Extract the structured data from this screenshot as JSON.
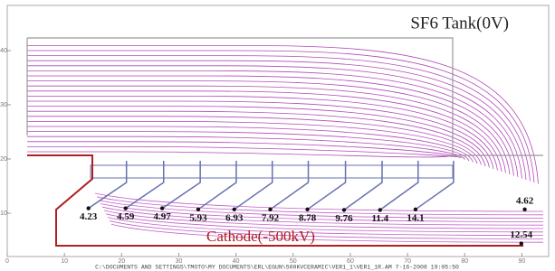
{
  "chart_data": {
    "type": "scatter",
    "tank_label": "SF6 Tank(0V)",
    "cathode_label": "Cathode(-500kV)",
    "footer": "C:\\DOCUMENTS AND SETTINGS\\TMOTO\\MY DOCUMENTS\\ERL\\EGUN\\500KVCERAMIC\\VER1_1\\VER1_1R.AM   7-16-2008  19:05:50",
    "x": [
      14.2,
      20.7,
      27.1,
      33.4,
      39.7,
      46.0,
      52.5,
      58.9,
      65.2,
      71.4,
      90.5,
      89.9
    ],
    "values": [
      10.9,
      10.9,
      10.9,
      10.7,
      10.7,
      10.7,
      10.7,
      10.6,
      10.6,
      10.7,
      10.7,
      4.4
    ],
    "field_values": [
      4.23,
      4.59,
      4.97,
      5.93,
      6.93,
      7.92,
      8.78,
      9.76,
      11.4,
      14.1,
      4.62,
      12.54
    ],
    "color": "#111111",
    "xlim": [
      0,
      95
    ],
    "ylim": [
      0,
      48
    ],
    "xticks": [
      0,
      10,
      20,
      30,
      40,
      50,
      60,
      70,
      80,
      90
    ],
    "yticks": [
      10,
      20,
      30,
      40
    ]
  }
}
